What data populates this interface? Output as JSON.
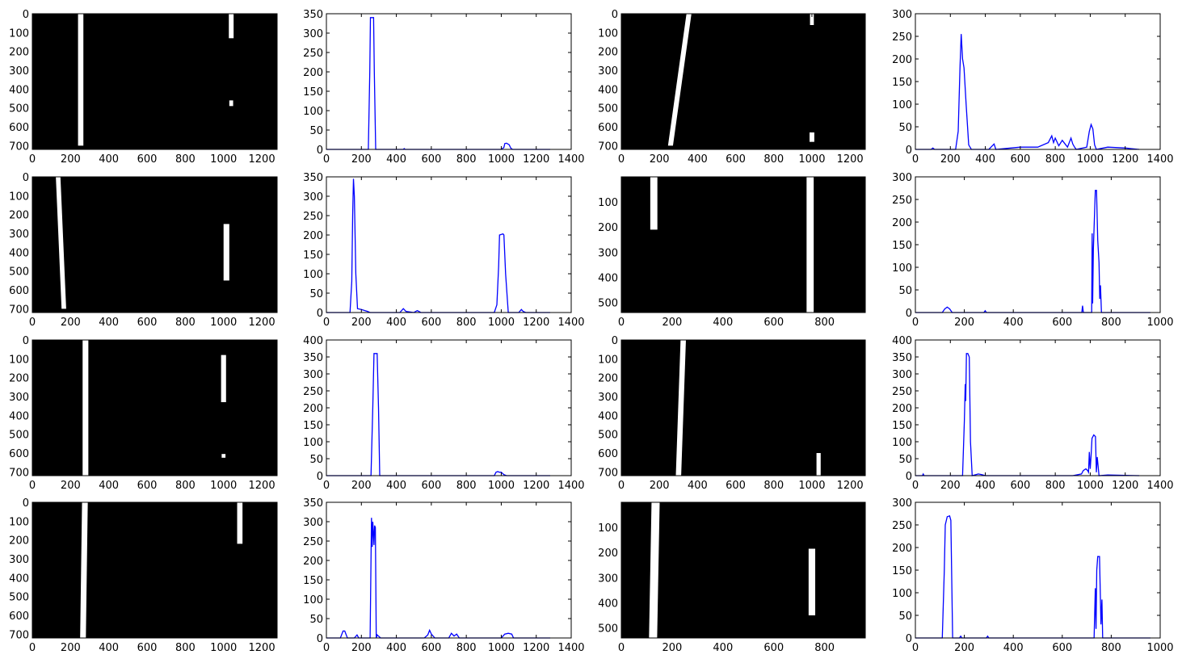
{
  "figure": {
    "layout": "4x4 grid: binary lane-mask images alternating with column-sum histogram line plots",
    "colors": {
      "image_background": "#000000",
      "lane_pixels": "#ffffff",
      "histogram_line": "#0000ff",
      "axes": "#000000"
    }
  },
  "chart_data": [
    {
      "type": "heatmap",
      "kind": "binary-image",
      "xlim": [
        0,
        1280
      ],
      "ylim_inverted": [
        720,
        0
      ],
      "x_ticks": [
        0,
        200,
        400,
        600,
        800,
        1000,
        1200
      ],
      "y_ticks": [
        0,
        100,
        200,
        300,
        400,
        500,
        600,
        700
      ],
      "lanes": [
        {
          "x_top": 253,
          "x_bottom": 253,
          "y_top": 0,
          "y_bottom": 700,
          "width": 28
        },
        {
          "x_top": 1040,
          "x_bottom": 1040,
          "y_top": 0,
          "y_bottom": 130,
          "width": 25
        },
        {
          "x_top": 1040,
          "x_bottom": 1040,
          "y_top": 460,
          "y_bottom": 490,
          "width": 20
        }
      ]
    },
    {
      "type": "line",
      "xlim": [
        0,
        1400
      ],
      "ylim": [
        0,
        350
      ],
      "x_ticks": [
        0,
        200,
        400,
        600,
        800,
        1000,
        1200,
        1400
      ],
      "y_ticks": [
        0,
        50,
        100,
        150,
        200,
        250,
        300,
        350
      ],
      "x": [
        0,
        230,
        240,
        248,
        252,
        270,
        274,
        282,
        300,
        440,
        445,
        450,
        600,
        800,
        1000,
        1015,
        1020,
        1030,
        1045,
        1055,
        1065,
        1280
      ],
      "y": [
        0,
        0,
        0,
        200,
        340,
        340,
        200,
        0,
        0,
        0,
        2,
        0,
        0,
        0,
        0,
        5,
        15,
        16,
        12,
        3,
        0,
        0
      ]
    },
    {
      "type": "heatmap",
      "kind": "binary-image",
      "xlim": [
        0,
        1280
      ],
      "ylim_inverted": [
        720,
        0
      ],
      "x_ticks": [
        0,
        200,
        400,
        600,
        800,
        1000,
        1200
      ],
      "y_ticks": [
        0,
        100,
        200,
        300,
        400,
        500,
        600,
        700
      ],
      "lanes": [
        {
          "x_top": 355,
          "x_bottom": 258,
          "y_top": 0,
          "y_bottom": 700,
          "width": 26
        },
        {
          "x_top": 1000,
          "x_bottom": 1000,
          "y_top": 0,
          "y_bottom": 60,
          "width": 20
        },
        {
          "x_top": 1000,
          "x_bottom": 1000,
          "y_top": 630,
          "y_bottom": 680,
          "width": 25
        }
      ]
    },
    {
      "type": "line",
      "xlim": [
        0,
        1400
      ],
      "ylim": [
        0,
        300
      ],
      "x_ticks": [
        0,
        200,
        400,
        600,
        800,
        1000,
        1200,
        1400
      ],
      "y_ticks": [
        0,
        50,
        100,
        150,
        200,
        250,
        300
      ],
      "x": [
        0,
        90,
        100,
        110,
        230,
        245,
        255,
        262,
        270,
        278,
        290,
        305,
        320,
        420,
        450,
        460,
        600,
        700,
        760,
        780,
        790,
        800,
        820,
        840,
        870,
        890,
        900,
        910,
        920,
        980,
        995,
        1005,
        1015,
        1025,
        1035,
        1100,
        1200,
        1280
      ],
      "y": [
        0,
        0,
        3,
        0,
        0,
        40,
        180,
        255,
        200,
        180,
        100,
        10,
        0,
        0,
        12,
        0,
        5,
        5,
        15,
        30,
        15,
        25,
        8,
        20,
        5,
        25,
        12,
        5,
        0,
        5,
        40,
        55,
        45,
        10,
        0,
        5,
        3,
        0
      ]
    },
    {
      "type": "heatmap",
      "kind": "binary-image",
      "xlim": [
        0,
        1280
      ],
      "ylim_inverted": [
        720,
        0
      ],
      "x_ticks": [
        0,
        200,
        400,
        600,
        800,
        1000,
        1200
      ],
      "y_ticks": [
        0,
        100,
        200,
        300,
        400,
        500,
        600,
        700
      ],
      "lanes": [
        {
          "x_top": 135,
          "x_bottom": 165,
          "y_top": 0,
          "y_bottom": 700,
          "width": 24
        },
        {
          "x_top": 1015,
          "x_bottom": 1015,
          "y_top": 250,
          "y_bottom": 550,
          "width": 30
        }
      ]
    },
    {
      "type": "line",
      "xlim": [
        0,
        1400
      ],
      "ylim": [
        0,
        350
      ],
      "x_ticks": [
        0,
        200,
        400,
        600,
        800,
        1000,
        1200,
        1400
      ],
      "y_ticks": [
        0,
        50,
        100,
        150,
        200,
        250,
        300,
        350
      ],
      "x": [
        0,
        135,
        145,
        150,
        155,
        160,
        168,
        178,
        200,
        220,
        235,
        250,
        420,
        440,
        455,
        500,
        520,
        540,
        960,
        975,
        985,
        990,
        1010,
        1015,
        1025,
        1040,
        1100,
        1115,
        1125,
        1140,
        1280
      ],
      "y": [
        0,
        0,
        80,
        250,
        345,
        300,
        100,
        10,
        8,
        5,
        3,
        0,
        0,
        10,
        3,
        0,
        5,
        0,
        0,
        20,
        120,
        200,
        203,
        200,
        100,
        0,
        0,
        8,
        3,
        0,
        0
      ]
    },
    {
      "type": "heatmap",
      "kind": "binary-image",
      "xlim": [
        0,
        960
      ],
      "ylim_inverted": [
        540,
        0
      ],
      "x_ticks": [
        0,
        200,
        400,
        600,
        800
      ],
      "y_ticks": [
        100,
        200,
        300,
        400,
        500
      ],
      "lanes": [
        {
          "x_top": 128,
          "x_bottom": 128,
          "y_top": 0,
          "y_bottom": 210,
          "width": 28
        },
        {
          "x_top": 743,
          "x_bottom": 743,
          "y_top": 0,
          "y_bottom": 540,
          "width": 28
        }
      ]
    },
    {
      "type": "line",
      "xlim": [
        0,
        1000
      ],
      "ylim": [
        0,
        300
      ],
      "x_ticks": [
        0,
        200,
        400,
        600,
        800,
        1000
      ],
      "y_ticks": [
        0,
        50,
        100,
        150,
        200,
        250,
        300
      ],
      "x": [
        0,
        110,
        120,
        130,
        140,
        150,
        280,
        285,
        290,
        680,
        683,
        686,
        720,
        722,
        724,
        727,
        735,
        740,
        745,
        750,
        753,
        756,
        760,
        960
      ],
      "y": [
        0,
        0,
        8,
        12,
        8,
        0,
        0,
        4,
        0,
        0,
        15,
        0,
        0,
        175,
        20,
        140,
        270,
        270,
        160,
        110,
        30,
        60,
        0,
        0
      ]
    },
    {
      "type": "heatmap",
      "kind": "binary-image",
      "xlim": [
        0,
        1280
      ],
      "ylim_inverted": [
        720,
        0
      ],
      "x_ticks": [
        0,
        200,
        400,
        600,
        800,
        1000,
        1200
      ],
      "y_ticks": [
        0,
        100,
        200,
        300,
        400,
        500,
        600,
        700
      ],
      "lanes": [
        {
          "x_top": 278,
          "x_bottom": 278,
          "y_top": 0,
          "y_bottom": 720,
          "width": 30
        },
        {
          "x_top": 1000,
          "x_bottom": 1000,
          "y_top": 80,
          "y_bottom": 330,
          "width": 26
        },
        {
          "x_top": 1000,
          "x_bottom": 1000,
          "y_top": 605,
          "y_bottom": 625,
          "width": 20
        }
      ]
    },
    {
      "type": "line",
      "xlim": [
        0,
        1400
      ],
      "ylim": [
        0,
        400
      ],
      "x_ticks": [
        0,
        200,
        400,
        600,
        800,
        1000,
        1200,
        1400
      ],
      "y_ticks": [
        0,
        50,
        100,
        150,
        200,
        250,
        300,
        350,
        400
      ],
      "x": [
        0,
        255,
        265,
        272,
        280,
        290,
        298,
        305,
        320,
        960,
        970,
        980,
        990,
        1000,
        1015,
        1030,
        1280
      ],
      "y": [
        0,
        0,
        200,
        360,
        360,
        360,
        200,
        0,
        0,
        0,
        10,
        12,
        10,
        10,
        3,
        0,
        0
      ]
    },
    {
      "type": "heatmap",
      "kind": "binary-image",
      "xlim": [
        0,
        1280
      ],
      "ylim_inverted": [
        720,
        0
      ],
      "x_ticks": [
        0,
        200,
        400,
        600,
        800,
        1000,
        1200
      ],
      "y_ticks": [
        0,
        100,
        200,
        300,
        400,
        500,
        600,
        700
      ],
      "lanes": [
        {
          "x_top": 325,
          "x_bottom": 300,
          "y_top": 0,
          "y_bottom": 720,
          "width": 28
        },
        {
          "x_top": 1035,
          "x_bottom": 1035,
          "y_top": 600,
          "y_bottom": 720,
          "width": 22
        }
      ]
    },
    {
      "type": "line",
      "xlim": [
        0,
        1400
      ],
      "ylim": [
        0,
        400
      ],
      "x_ticks": [
        0,
        200,
        400,
        600,
        800,
        1000,
        1200,
        1400
      ],
      "y_ticks": [
        0,
        50,
        100,
        150,
        200,
        250,
        300,
        350,
        400
      ],
      "x": [
        0,
        40,
        45,
        50,
        270,
        280,
        285,
        288,
        292,
        300,
        308,
        315,
        325,
        360,
        380,
        400,
        900,
        950,
        960,
        975,
        985,
        990,
        995,
        1000,
        1005,
        1010,
        1020,
        1030,
        1035,
        1040,
        1050,
        1100,
        1280
      ],
      "y": [
        0,
        0,
        5,
        0,
        0,
        160,
        270,
        220,
        360,
        360,
        350,
        100,
        0,
        5,
        3,
        0,
        0,
        5,
        15,
        20,
        15,
        10,
        70,
        20,
        60,
        110,
        120,
        115,
        10,
        55,
        0,
        2,
        0
      ]
    },
    {
      "type": "heatmap",
      "kind": "binary-image",
      "xlim": [
        0,
        1280
      ],
      "ylim_inverted": [
        720,
        0
      ],
      "x_ticks": [
        0,
        200,
        400,
        600,
        800,
        1000,
        1200
      ],
      "y_ticks": [
        0,
        100,
        200,
        300,
        400,
        500,
        600,
        700
      ],
      "lanes": [
        {
          "x_top": 275,
          "x_bottom": 265,
          "y_top": 0,
          "y_bottom": 720,
          "width": 30
        },
        {
          "x_top": 1085,
          "x_bottom": 1085,
          "y_top": 0,
          "y_bottom": 220,
          "width": 28
        }
      ]
    },
    {
      "type": "line",
      "xlim": [
        0,
        1400
      ],
      "ylim": [
        0,
        350
      ],
      "x_ticks": [
        0,
        200,
        400,
        600,
        800,
        1000,
        1200,
        1400
      ],
      "y_ticks": [
        0,
        50,
        100,
        150,
        200,
        250,
        300,
        350
      ],
      "x": [
        0,
        80,
        95,
        105,
        120,
        160,
        175,
        185,
        250,
        258,
        262,
        265,
        268,
        272,
        276,
        280,
        285,
        290,
        310,
        560,
        580,
        590,
        600,
        620,
        700,
        715,
        730,
        745,
        760,
        1000,
        1020,
        1040,
        1060,
        1070,
        1280
      ],
      "y": [
        0,
        0,
        18,
        18,
        0,
        0,
        8,
        0,
        0,
        310,
        235,
        300,
        280,
        240,
        290,
        285,
        0,
        8,
        0,
        0,
        8,
        20,
        10,
        0,
        0,
        12,
        5,
        10,
        0,
        0,
        10,
        12,
        10,
        0,
        0
      ]
    },
    {
      "type": "heatmap",
      "kind": "binary-image",
      "xlim": [
        0,
        960
      ],
      "ylim_inverted": [
        540,
        0
      ],
      "x_ticks": [
        0,
        200,
        400,
        600,
        800
      ],
      "y_ticks": [
        100,
        200,
        300,
        400,
        500
      ],
      "lanes": [
        {
          "x_top": 135,
          "x_bottom": 125,
          "y_top": 0,
          "y_bottom": 540,
          "width": 32
        },
        {
          "x_top": 750,
          "x_bottom": 750,
          "y_top": 185,
          "y_bottom": 450,
          "width": 26
        }
      ]
    },
    {
      "type": "line",
      "xlim": [
        0,
        1000
      ],
      "ylim": [
        0,
        300
      ],
      "x_ticks": [
        0,
        200,
        400,
        600,
        800,
        1000
      ],
      "y_ticks": [
        0,
        50,
        100,
        150,
        200,
        250,
        300
      ],
      "x": [
        0,
        110,
        118,
        122,
        130,
        140,
        145,
        152,
        160,
        180,
        185,
        190,
        290,
        295,
        300,
        730,
        735,
        738,
        741,
        745,
        752,
        758,
        762,
        765,
        770,
        960
      ],
      "y": [
        0,
        0,
        150,
        250,
        268,
        270,
        260,
        0,
        0,
        0,
        4,
        0,
        0,
        4,
        0,
        0,
        110,
        20,
        150,
        180,
        180,
        30,
        85,
        0,
        0,
        0
      ]
    }
  ]
}
